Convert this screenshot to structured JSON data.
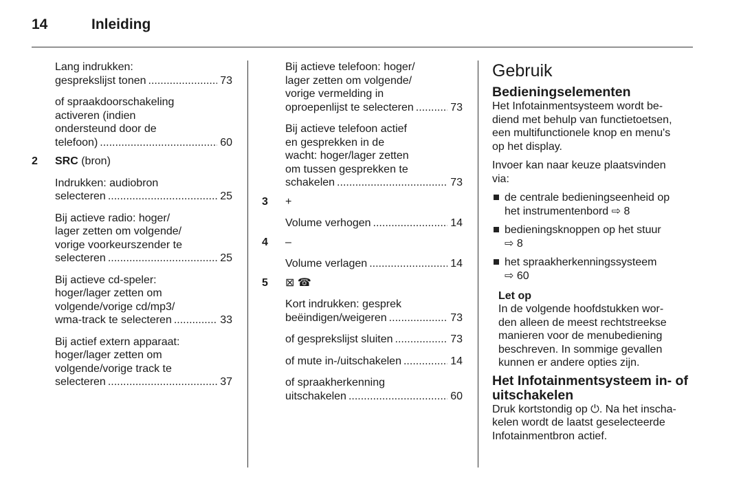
{
  "header": {
    "page_number": "14",
    "title": "Inleiding"
  },
  "col1": [
    {
      "type": "para",
      "lines": [
        {
          "text": "Lang indrukken:"
        },
        {
          "text": "gesprekslijst tonen",
          "page": "73"
        }
      ]
    },
    {
      "type": "para",
      "lines": [
        {
          "text": "of spraakdoorschakeling"
        },
        {
          "text": "activeren (indien"
        },
        {
          "text": "ondersteund door de"
        },
        {
          "text": "telefoon)",
          "page": "60"
        }
      ]
    },
    {
      "type": "item",
      "num": "2",
      "bold": "SRC",
      "label": " (bron)"
    },
    {
      "type": "para",
      "lines": [
        {
          "text": "Indrukken: audiobron"
        },
        {
          "text": "selecteren",
          "page": "25"
        }
      ]
    },
    {
      "type": "para",
      "lines": [
        {
          "text": "Bij actieve radio: hoger/"
        },
        {
          "text": "lager zetten om volgende/"
        },
        {
          "text": "vorige voorkeurszender te"
        },
        {
          "text": "selecteren",
          "page": "25"
        }
      ]
    },
    {
      "type": "para",
      "lines": [
        {
          "text": "Bij actieve cd-speler:"
        },
        {
          "text": "hoger/lager zetten om"
        },
        {
          "text": "volgende/vorige cd/mp3/"
        },
        {
          "text": "wma-track te selecteren",
          "page": "33"
        }
      ]
    },
    {
      "type": "para",
      "lines": [
        {
          "text": "Bij actief extern apparaat:"
        },
        {
          "text": "hoger/lager zetten om"
        },
        {
          "text": "volgende/vorige track te"
        },
        {
          "text": "selecteren",
          "page": "37"
        }
      ]
    }
  ],
  "col2": [
    {
      "type": "para",
      "lines": [
        {
          "text": "Bij actieve telefoon: hoger/"
        },
        {
          "text": "lager zetten om volgende/"
        },
        {
          "text": "vorige vermelding in"
        },
        {
          "text": "oproepenlijst te selecteren",
          "page": "73"
        }
      ]
    },
    {
      "type": "para",
      "lines": [
        {
          "text": "Bij actieve telefoon actief"
        },
        {
          "text": "en gesprekken in de"
        },
        {
          "text": "wacht: hoger/lager zetten"
        },
        {
          "text": "om tussen gesprekken te"
        },
        {
          "text": "schakelen",
          "page": "73"
        }
      ]
    },
    {
      "type": "item",
      "num": "3",
      "bold": "",
      "label": "+"
    },
    {
      "type": "para",
      "lines": [
        {
          "text": "Volume verhogen",
          "page": "14"
        }
      ]
    },
    {
      "type": "item",
      "num": "4",
      "bold": "",
      "label": "–"
    },
    {
      "type": "para",
      "lines": [
        {
          "text": "Volume verlagen",
          "page": "14"
        }
      ]
    },
    {
      "type": "item",
      "num": "5",
      "bold": "",
      "label": "⊠ ☎"
    },
    {
      "type": "para",
      "lines": [
        {
          "text": "Kort indrukken: gesprek"
        },
        {
          "text": "beëindigen/weigeren",
          "page": "73"
        }
      ]
    },
    {
      "type": "para",
      "lines": [
        {
          "text": "of gesprekslijst sluiten",
          "page": "73"
        }
      ]
    },
    {
      "type": "para",
      "lines": [
        {
          "text": "of mute in-/uitschakelen",
          "page": "14"
        }
      ]
    },
    {
      "type": "para",
      "lines": [
        {
          "text": "of spraakherkenning"
        },
        {
          "text": "uitschakelen",
          "page": "60"
        }
      ]
    }
  ],
  "col3": [
    {
      "type": "h1",
      "text": "Gebruik"
    },
    {
      "type": "h2",
      "lines": [
        "Bedieningselementen"
      ]
    },
    {
      "type": "body",
      "lines": [
        "Het Infotainmentsysteem wordt be-",
        "diend met behulp van functietoetsen,",
        "een multifunctionele knop en menu's",
        "op het display."
      ]
    },
    {
      "type": "body",
      "gap": true,
      "lines": [
        "Invoer kan naar keuze plaatsvinden",
        "via:"
      ]
    },
    {
      "type": "bullet",
      "lines": [
        "de centrale bedieningseenheid op",
        "het instrumentenbord ⇨ 8"
      ]
    },
    {
      "type": "bullet",
      "lines": [
        "bedieningsknoppen op het stuur",
        "⇨ 8"
      ]
    },
    {
      "type": "bullet",
      "lines": [
        "het spraakherkenningssysteem",
        "⇨ 60"
      ]
    },
    {
      "type": "h3",
      "text": "Let op"
    },
    {
      "type": "note",
      "lines": [
        "In de volgende hoofdstukken wor-",
        "den alleen de meest rechtstreekse",
        "manieren voor de menubediening",
        "beschreven. In sommige gevallen",
        "kunnen er andere opties zijn."
      ]
    },
    {
      "type": "h2",
      "lines": [
        "Het Infotainmentsysteem in- of",
        "uitschakelen"
      ]
    },
    {
      "type": "body",
      "lines": [
        "Druk kortstondig op ⏻. Na het inscha-",
        "kelen wordt de laatst geselecteerde",
        "Infotainmentbron actief."
      ]
    }
  ]
}
